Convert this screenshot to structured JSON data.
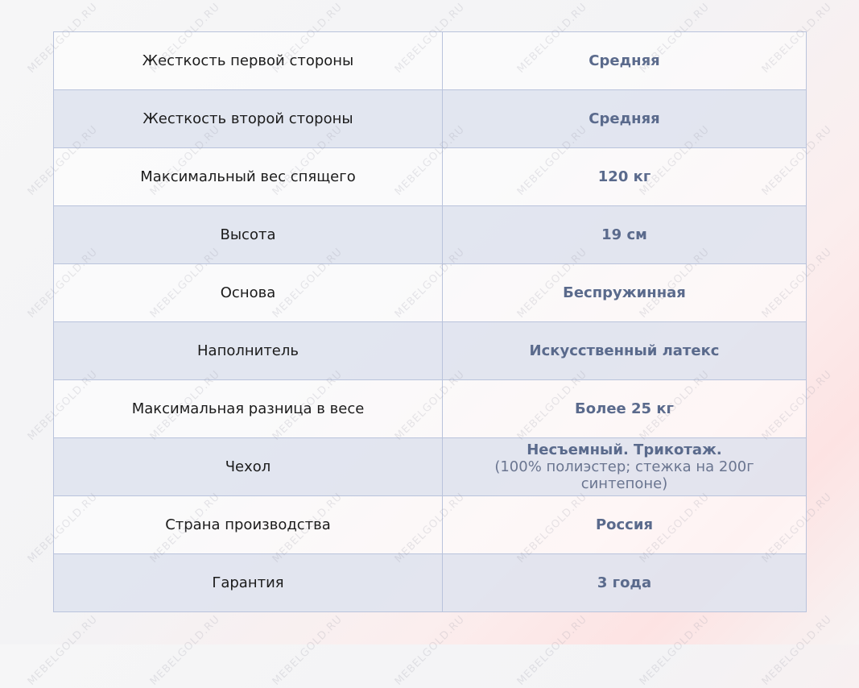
{
  "watermark": "MEBELGOLD.RU",
  "colors": {
    "value_text": "#5a6a8c",
    "border": "#b9c3dc",
    "shaded_row": "#dee3ee"
  },
  "rows": [
    {
      "label": "Жесткость первой стороны",
      "value": "Средняя"
    },
    {
      "label": "Жесткость второй стороны",
      "value": "Средняя"
    },
    {
      "label": "Максимальный вес спящего",
      "value": "120 кг"
    },
    {
      "label": "Высота",
      "value": "19 см"
    },
    {
      "label": "Основа",
      "value": "Беспружинная"
    },
    {
      "label": "Наполнитель",
      "value": "Искусственный латекс"
    },
    {
      "label": "Максимальная разница в весе",
      "value": "Более 25 кг"
    },
    {
      "label": "Чехол",
      "value": "Несъемный. Трикотаж.",
      "note": "(100% полиэстер; стежка на 200г синтепоне)"
    },
    {
      "label": "Страна производства",
      "value": "Россия"
    },
    {
      "label": "Гарантия",
      "value": "3 года"
    }
  ]
}
